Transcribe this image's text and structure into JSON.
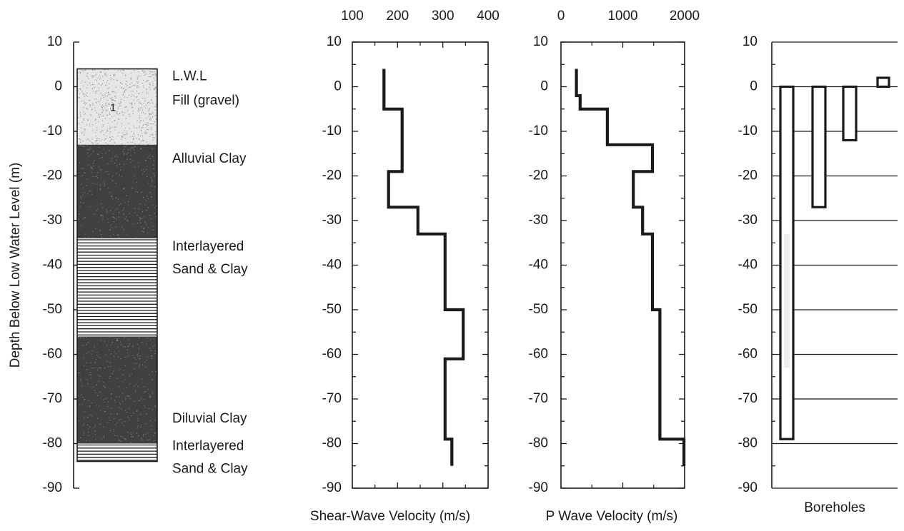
{
  "colors": {
    "ink": "#1a1a1a",
    "soil_dark": "#404040",
    "soil_light": "#e6e6e6",
    "stipple": "#8c8c8c",
    "band_light": "#eeeeee"
  },
  "chart_data": [
    {
      "type": "soil_column",
      "ylabel": "Depth Below Low Water Level (m)",
      "ylim": [
        -90,
        10
      ],
      "yticks": [
        "10",
        "0",
        "-10",
        "-20",
        "-30",
        "-40",
        "-50",
        "-60",
        "-70",
        "-80",
        "-90"
      ],
      "layers": [
        {
          "label": "L.W.L",
          "top": 4,
          "bottom": 0,
          "fill": "light-dotted"
        },
        {
          "label": "Fill (gravel)",
          "tag": "1",
          "top": 0,
          "bottom": -13,
          "fill": "light-dotted"
        },
        {
          "label": "Alluvial Clay",
          "top": -13,
          "bottom": -34,
          "fill": "dark-stippled"
        },
        {
          "label": "Interlayered\nSand & Clay",
          "top": -34,
          "bottom": -56,
          "fill": "hatched"
        },
        {
          "label": "Diluvial Clay",
          "top": -56,
          "bottom": -80,
          "fill": "dark-stippled"
        },
        {
          "label": "Interlayered\nSand & Clay",
          "top": -80,
          "bottom": -84,
          "fill": "hatched"
        }
      ]
    },
    {
      "type": "line",
      "step": true,
      "xlabel": "Shear-Wave Velocity (m/s)",
      "ylabel": "",
      "xlim": [
        100,
        400
      ],
      "ylim": [
        -90,
        10
      ],
      "xticks": [
        "100",
        "200",
        "300",
        "400"
      ],
      "yticks": [
        "10",
        "0",
        "-10",
        "-20",
        "-30",
        "-40",
        "-50",
        "-60",
        "-70",
        "-80",
        "-90"
      ],
      "series": [
        {
          "x": [
            170,
            170,
            210,
            210,
            180,
            180,
            245,
            245,
            305,
            305,
            345,
            345,
            305,
            305,
            320,
            320
          ],
          "y": [
            4,
            -5,
            -5,
            -19,
            -19,
            -27,
            -27,
            -33,
            -33,
            -50,
            -50,
            -61,
            -61,
            -79,
            -79,
            -85
          ]
        }
      ]
    },
    {
      "type": "line",
      "step": true,
      "xlabel": "P Wave Velocity (m/s)",
      "ylabel": "",
      "xlim": [
        0,
        2000
      ],
      "ylim": [
        -90,
        10
      ],
      "xticks": [
        "0",
        "1000",
        "2000"
      ],
      "yticks": [
        "10",
        "0",
        "-10",
        "-20",
        "-30",
        "-40",
        "-50",
        "-60",
        "-70",
        "-80",
        "-90"
      ],
      "series": [
        {
          "x": [
            250,
            250,
            310,
            310,
            340,
            340,
            750,
            750,
            1480,
            1480,
            1170,
            1170,
            1320,
            1320,
            1480,
            1480,
            1600,
            1600,
            1990,
            1990
          ],
          "y": [
            4,
            -2,
            -2,
            -5,
            -5,
            -5,
            -5,
            -13,
            -13,
            -19,
            -19,
            -27,
            -27,
            -33,
            -33,
            -50,
            -50,
            -79,
            -79,
            -85
          ]
        }
      ]
    },
    {
      "type": "bar",
      "xlabel": "Boreholes",
      "ylabel": "",
      "ylim": [
        -90,
        10
      ],
      "yticks": [
        "10",
        "0",
        "-10",
        "-20",
        "-30",
        "-40",
        "-50",
        "-60",
        "-70",
        "-80",
        "-90"
      ],
      "grid": true,
      "values": [
        -79,
        -27,
        -12,
        2
      ]
    }
  ]
}
